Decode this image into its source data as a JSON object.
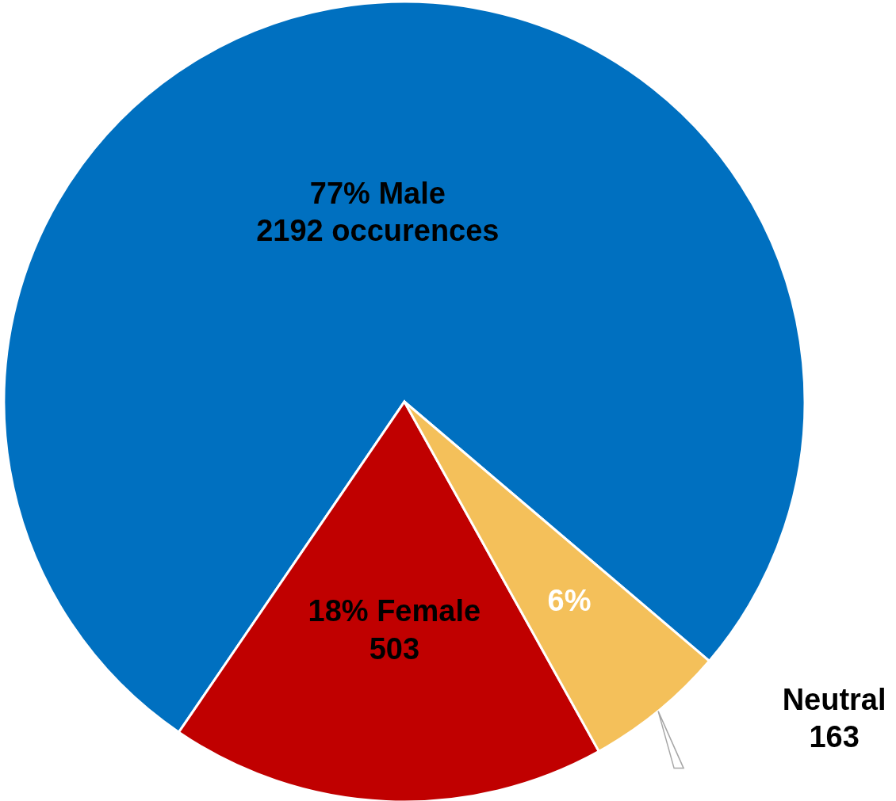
{
  "chart_data": {
    "type": "pie",
    "categories": [
      "Male",
      "Female",
      "Neutral"
    ],
    "values": [
      2192,
      503,
      163
    ],
    "colors": [
      "#0070c0",
      "#c00000",
      "#f4c05a"
    ],
    "value_labels": [
      "2192 occurences",
      "503",
      "163"
    ],
    "annotations": [
      {
        "text": "77%",
        "x": "Male"
      },
      {
        "text": "18%",
        "x": "Female"
      },
      {
        "text": "6%",
        "x": "Neutral"
      }
    ]
  }
}
